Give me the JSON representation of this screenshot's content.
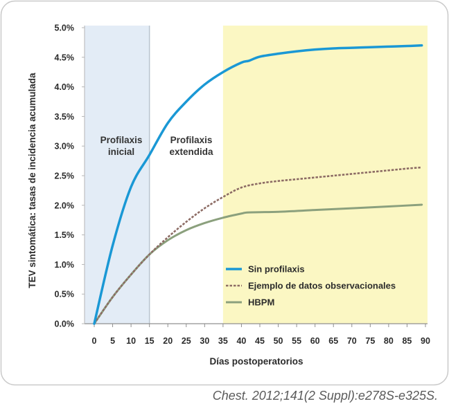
{
  "chart_data": {
    "type": "line",
    "xlabel": "Días postoperatorios",
    "ylabel": "TEV sintomática: tasas de incidencia acumulada",
    "xlim": [
      0,
      90
    ],
    "ylim": [
      0,
      5
    ],
    "xticks": [
      0,
      5,
      10,
      15,
      20,
      25,
      30,
      35,
      40,
      45,
      50,
      55,
      60,
      65,
      70,
      75,
      80,
      85,
      90
    ],
    "yticks": [
      0,
      0.5,
      1,
      1.5,
      2,
      2.5,
      3,
      3.5,
      4,
      4.5,
      5
    ],
    "ytick_labels": [
      "0.0%",
      "0.5%",
      "1.0%",
      "1.5%",
      "2.0%",
      "2.5%",
      "3.0%",
      "3.5%",
      "4.0%",
      "4.5%",
      "5.0%"
    ],
    "grid": false,
    "legend_position": "lower-right",
    "regions": [
      {
        "x": [
          0,
          15
        ],
        "color": "#e3ecf6",
        "edge_color": "#b9c4cf"
      },
      {
        "x": [
          35,
          90
        ],
        "color": "#fbf7c3",
        "edge_color": "#fbf7c3"
      }
    ],
    "annotations": [
      {
        "lines": [
          "Profilaxis",
          "inicial"
        ]
      },
      {
        "lines": [
          "Profilaxis",
          "extendida"
        ]
      }
    ],
    "series": [
      {
        "name": "Sin profilaxis",
        "color": "#1a98d5",
        "style": "solid",
        "x": [
          0,
          5,
          10,
          15,
          20,
          25,
          30,
          35,
          40,
          42,
          45,
          50,
          55,
          60,
          65,
          70,
          75,
          80,
          85,
          89
        ],
        "y": [
          0,
          1.32,
          2.31,
          2.85,
          3.39,
          3.75,
          4.04,
          4.25,
          4.41,
          4.44,
          4.51,
          4.56,
          4.6,
          4.63,
          4.65,
          4.66,
          4.67,
          4.68,
          4.69,
          4.7
        ]
      },
      {
        "name": "Ejemplo de datos observacionales",
        "color": "#8c6b64",
        "style": "dashed",
        "x": [
          0,
          5,
          10,
          15,
          20,
          25,
          30,
          35,
          40,
          45,
          50,
          55,
          60,
          65,
          70,
          75,
          80,
          85,
          89
        ],
        "y": [
          0,
          0.45,
          0.83,
          1.17,
          1.46,
          1.72,
          1.95,
          2.14,
          2.3,
          2.37,
          2.41,
          2.44,
          2.47,
          2.5,
          2.53,
          2.56,
          2.59,
          2.62,
          2.64
        ]
      },
      {
        "name": "HBPM",
        "color": "#8ba07d",
        "style": "solid",
        "x": [
          0,
          5,
          10,
          15,
          20,
          25,
          30,
          35,
          40,
          42,
          50,
          60,
          70,
          80,
          89
        ],
        "y": [
          0,
          0.45,
          0.83,
          1.17,
          1.41,
          1.58,
          1.7,
          1.79,
          1.86,
          1.88,
          1.89,
          1.92,
          1.95,
          1.98,
          2.01
        ]
      }
    ]
  },
  "caption": "Chest. 2012;141(2 Suppl):e278S-e325S."
}
